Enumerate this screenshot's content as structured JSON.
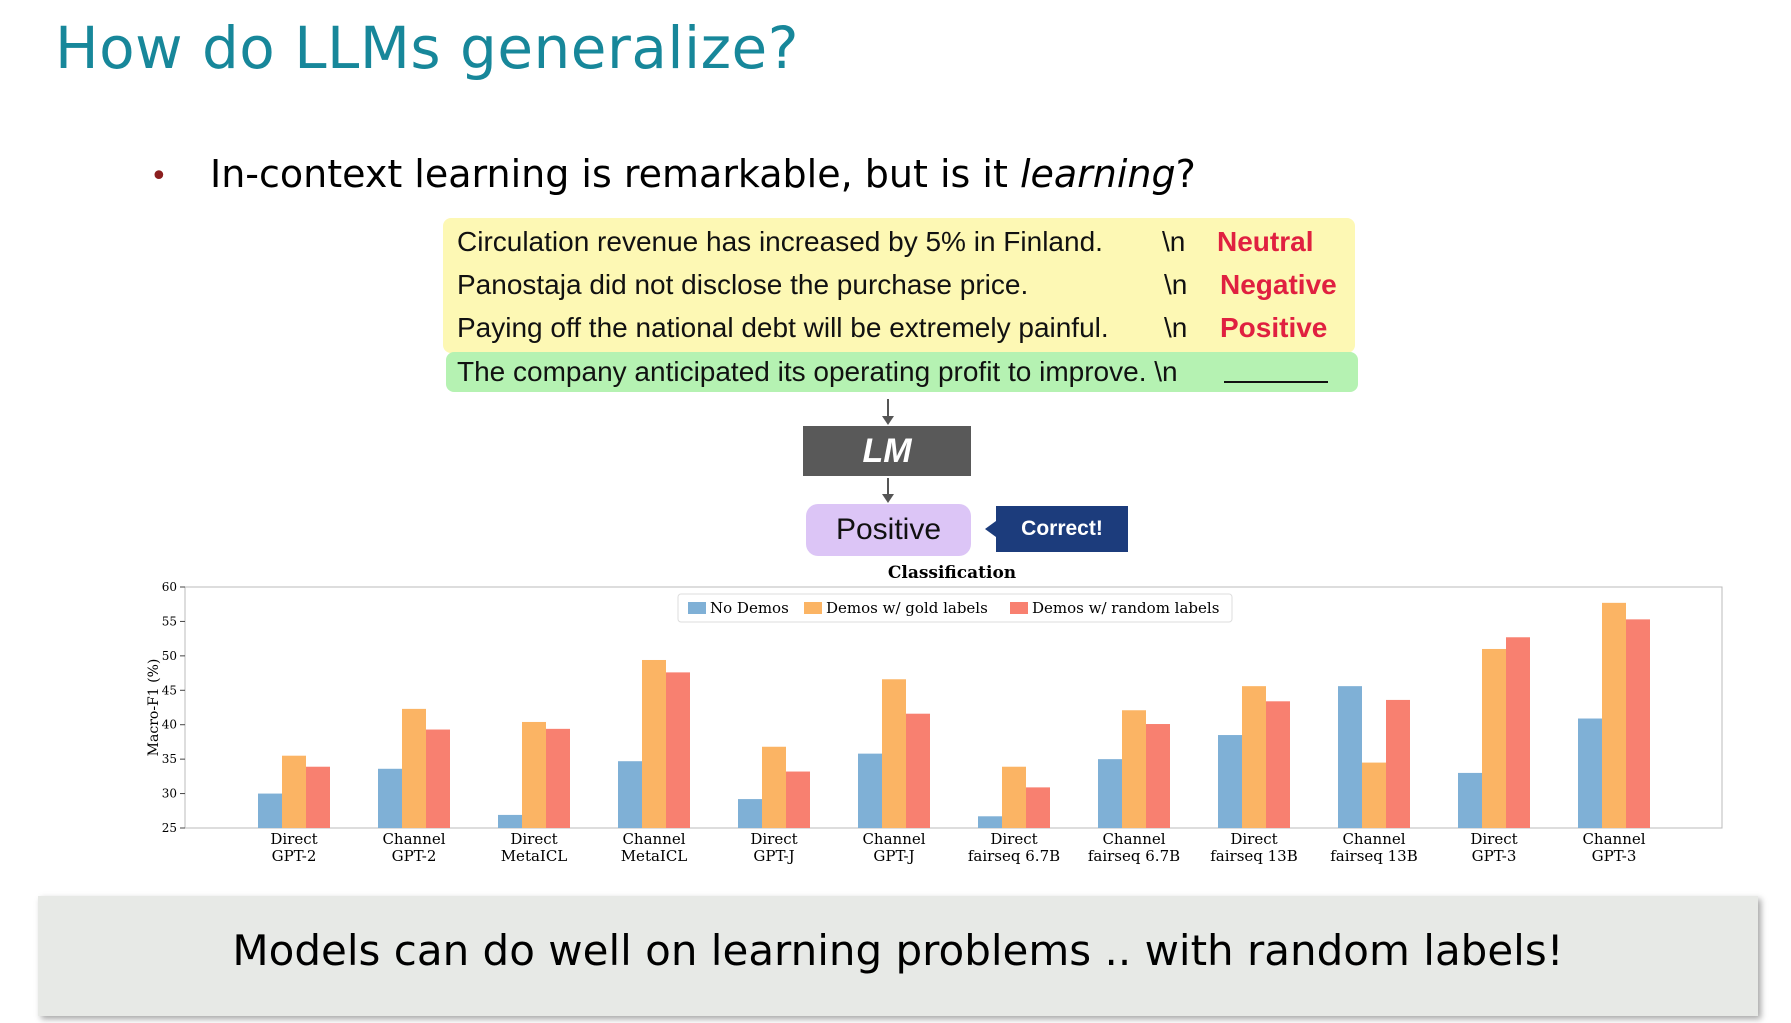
{
  "slide": {
    "title": "How do LLMs generalize?",
    "bullet_pre": "In-context learning is remarkable, but is it ",
    "bullet_em": "learning",
    "bullet_post": "?",
    "footer": "Models can do well on learning problems .. with random labels!"
  },
  "diagram": {
    "examples": [
      {
        "text": "Circulation revenue has increased by 5% in Finland.",
        "sep": "\\n",
        "label": "Neutral"
      },
      {
        "text": "Panostaja did not disclose the purchase price.",
        "sep": "\\n",
        "label": "Negative"
      },
      {
        "text": "Paying off the national debt will be extremely painful.",
        "sep": "\\n",
        "label": "Positive"
      }
    ],
    "query": {
      "text": "The company anticipated its operating profit to improve. \\n"
    },
    "lm_label": "LM",
    "prediction": "Positive",
    "feedback": "Correct!",
    "colors": {
      "examples_bg": "#fdf8b4",
      "query_bg": "#b5f2b2",
      "label": "#e02040",
      "lm_bg": "#595959",
      "prediction_bg": "#dcc5f6",
      "feedback_bg": "#1c3c7c"
    }
  },
  "chart_data": {
    "type": "bar",
    "title": "Classification",
    "ylabel": "Macro-F1 (%)",
    "xlabel": "",
    "ylim": [
      25,
      60
    ],
    "yticks": [
      25,
      30,
      35,
      40,
      45,
      50,
      55,
      60
    ],
    "legend_position": "top-center",
    "categories": [
      [
        "Direct",
        "GPT-2"
      ],
      [
        "Channel",
        "GPT-2"
      ],
      [
        "Direct",
        "MetaICL"
      ],
      [
        "Channel",
        "MetaICL"
      ],
      [
        "Direct",
        "GPT-J"
      ],
      [
        "Channel",
        "GPT-J"
      ],
      [
        "Direct",
        "fairseq 6.7B"
      ],
      [
        "Channel",
        "fairseq 6.7B"
      ],
      [
        "Direct",
        "fairseq 13B"
      ],
      [
        "Channel",
        "fairseq 13B"
      ],
      [
        "Direct",
        "GPT-3"
      ],
      [
        "Channel",
        "GPT-3"
      ]
    ],
    "series": [
      {
        "name": "No Demos",
        "color": "#7fb0d6",
        "values": [
          30.0,
          33.6,
          26.9,
          34.7,
          29.2,
          35.8,
          26.7,
          35.0,
          38.5,
          45.6,
          33.0,
          40.9
        ]
      },
      {
        "name": "Demos w/ gold labels",
        "color": "#fbb464",
        "values": [
          35.5,
          42.3,
          40.4,
          49.4,
          36.8,
          46.6,
          33.9,
          42.1,
          45.6,
          34.5,
          51.0,
          57.7
        ]
      },
      {
        "name": "Demos w/ random labels",
        "color": "#f88070",
        "values": [
          33.9,
          39.3,
          39.4,
          47.6,
          33.2,
          41.6,
          30.9,
          40.1,
          43.4,
          43.6,
          52.7,
          55.3
        ]
      }
    ]
  }
}
